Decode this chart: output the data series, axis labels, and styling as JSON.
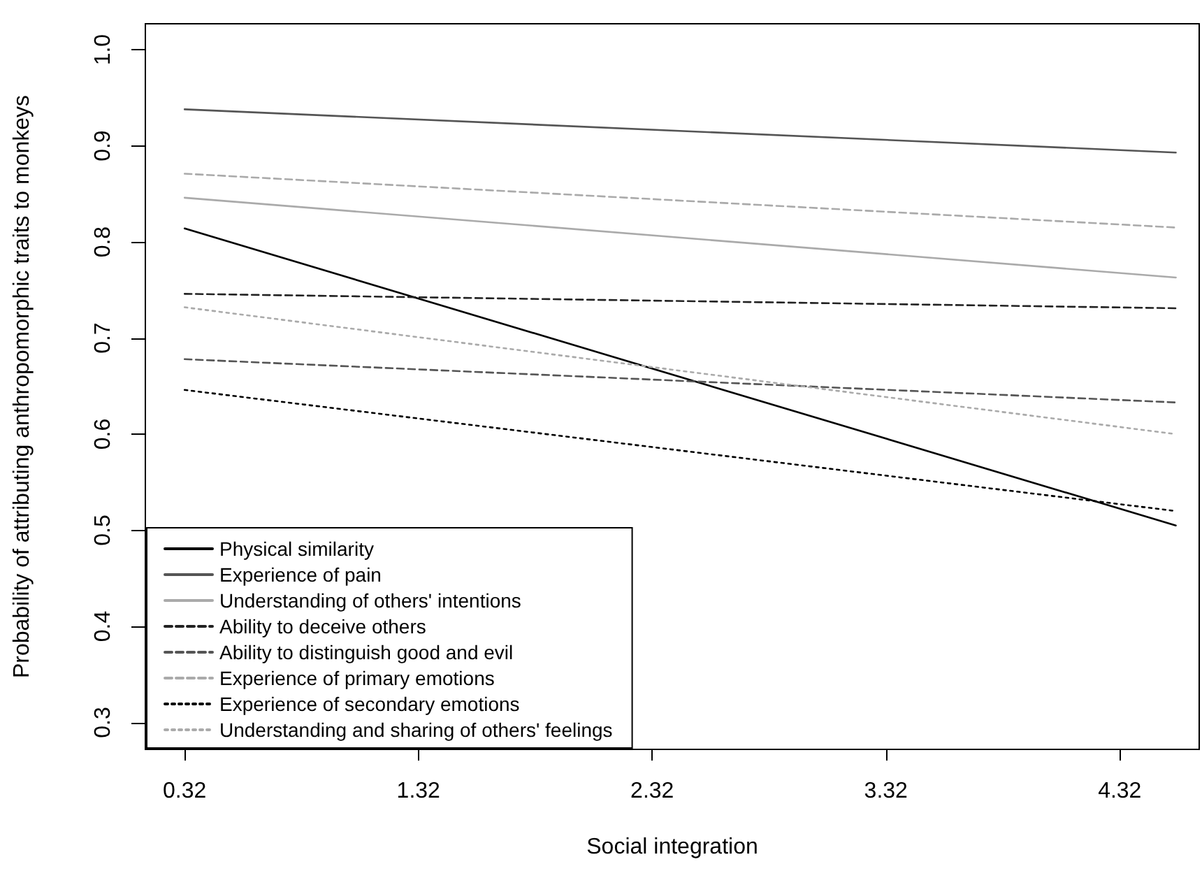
{
  "chart_data": {
    "type": "line",
    "xlabel": "Social integration",
    "ylabel": "Probability of attributing anthropomorphic traits to monkeys",
    "x": [
      0.32,
      4.56
    ],
    "series": [
      {
        "name": "Physical similarity",
        "color": "#000000",
        "line_style": "solid",
        "values": [
          0.814,
          0.505
        ]
      },
      {
        "name": "Experience of pain",
        "color": "#555555",
        "line_style": "solid",
        "values": [
          0.938,
          0.893
        ]
      },
      {
        "name": "Understanding of others' intentions",
        "color": "#aaaaaa",
        "line_style": "solid",
        "values": [
          0.846,
          0.763
        ]
      },
      {
        "name": "Ability to deceive others",
        "color": "#222222",
        "line_style": "dashed",
        "values": [
          0.746,
          0.731
        ]
      },
      {
        "name": "Ability to distinguish good and evil",
        "color": "#555555",
        "line_style": "dashed",
        "values": [
          0.678,
          0.633
        ]
      },
      {
        "name": "Experience of primary emotions",
        "color": "#aaaaaa",
        "line_style": "dashed",
        "values": [
          0.871,
          0.815
        ]
      },
      {
        "name": "Experience of secondary emotions",
        "color": "#000000",
        "line_style": "dotted",
        "values": [
          0.646,
          0.52
        ]
      },
      {
        "name": "Understanding and sharing of others' feelings",
        "color": "#aaaaaa",
        "line_style": "dotted",
        "values": [
          0.732,
          0.6
        ]
      }
    ],
    "xlim": [
      0.152,
      4.66
    ],
    "ylim": [
      0.272,
      1.027
    ],
    "xticks": [
      0.32,
      1.32,
      2.32,
      3.32,
      4.32
    ],
    "yticks": [
      0.3,
      0.4,
      0.5,
      0.6,
      0.7,
      0.8,
      0.9,
      {
        "value": 1,
        "label": "1.0"
      }
    ],
    "grid": false,
    "legend": "bottom left",
    "marker": "none"
  }
}
